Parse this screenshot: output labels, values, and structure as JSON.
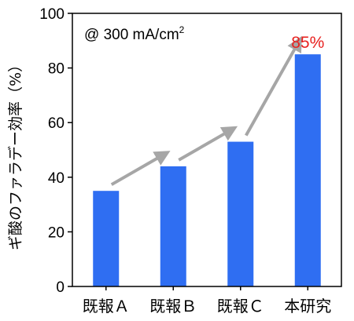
{
  "chart_data": {
    "type": "bar",
    "categories": [
      "既報Ａ",
      "既報Ｂ",
      "既報Ｃ",
      "本研究"
    ],
    "values": [
      35,
      44,
      53,
      85
    ],
    "ylabel": "ギ酸のファラデー効率（%）",
    "xlabel": "",
    "ylim": [
      0,
      100
    ],
    "yticks": [
      0,
      20,
      40,
      60,
      80,
      100
    ],
    "grid": false,
    "legend": "none",
    "annotation": {
      "text": "@ 300 mA/cm",
      "superscript": "2"
    },
    "highlight": {
      "category_index": 3,
      "value_label": "85%",
      "label_color": "#e8201e"
    },
    "trend_arrows": true,
    "colors": {
      "bar": "#2f6ef2",
      "arrow": "#a6a6a6",
      "axis": "#000000",
      "highlight_text": "#e8201e"
    }
  }
}
